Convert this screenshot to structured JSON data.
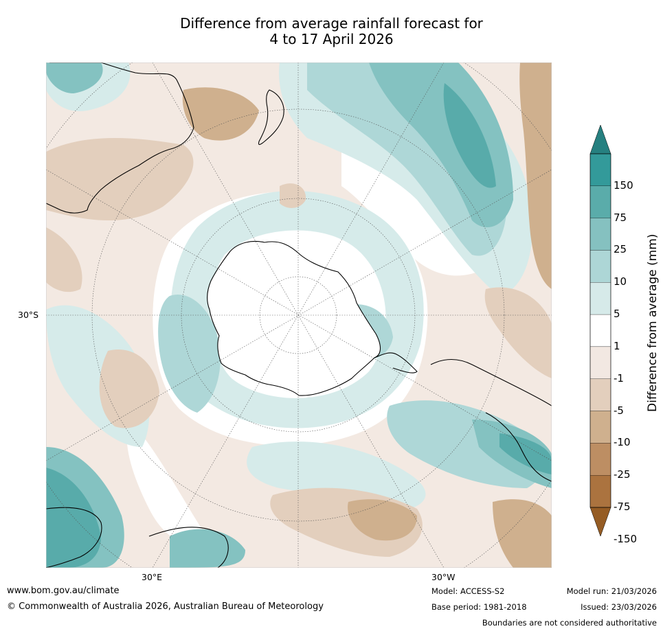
{
  "title": {
    "line1": "Difference from average rainfall forecast for",
    "line2": "4 to 17 April 2026"
  },
  "map": {
    "projection": "south polar stereographic",
    "lat_label": "30°S",
    "lon_labels": [
      "30°E",
      "30°W"
    ],
    "colors": {
      "ocean_base": "#f3e9e2",
      "dry_1": "#f3e9e2",
      "dry_2": "#e3cfbd",
      "dry_3": "#cfb08e",
      "wet_1": "#d6ebea",
      "wet_2": "#aed7d7",
      "wet_3": "#84c2c1",
      "wet_4": "#58abaa",
      "coast": "#000000"
    }
  },
  "colorbar": {
    "title": "Difference from average (mm)",
    "labels": [
      "150",
      "75",
      "25",
      "10",
      "5",
      "1",
      "-1",
      "-5",
      "-10",
      "-25",
      "-75",
      "-150"
    ],
    "colors": [
      "#268080",
      "#339a9a",
      "#5aacaa",
      "#85c1c0",
      "#add6d6",
      "#d6eae9",
      "#ffffff",
      "#f2e8e2",
      "#e3cfbd",
      "#cfb08e",
      "#bd8e63",
      "#ab733f",
      "#955c24"
    ]
  },
  "footer": {
    "url": "www.bom.gov.au/climate",
    "copyright": "© Commonwealth of Australia 2026, Australian Bureau of Meteorology",
    "model": "Model: ACCESS-S2",
    "base_period": "Base period: 1981-2018",
    "model_run": "Model run: 21/03/2026",
    "issued": "Issued: 23/03/2026",
    "disclaimer": "Boundaries are not considered authoritative"
  }
}
